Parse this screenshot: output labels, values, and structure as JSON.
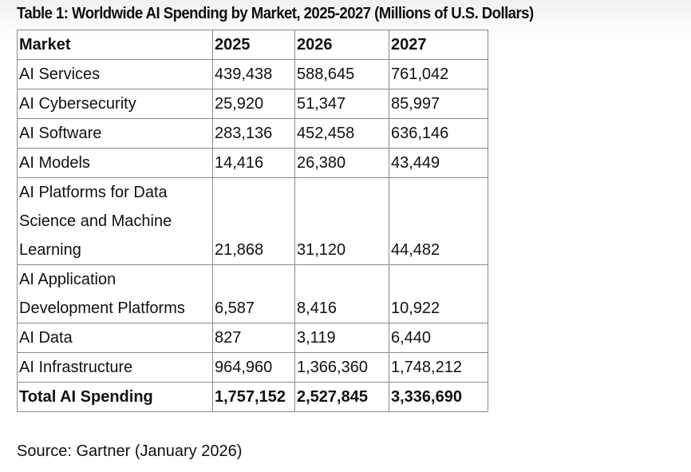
{
  "title": "Table 1: Worldwide AI Spending by Market, 2025-2027 (Millions of U.S. Dollars)",
  "table": {
    "headers": [
      "Market",
      "2025",
      "2026",
      "2027"
    ],
    "rows": [
      {
        "market": "AI Services",
        "y2025": "439,438",
        "y2026": "588,645",
        "y2027": "761,042"
      },
      {
        "market": "AI Cybersecurity",
        "y2025": "25,920",
        "y2026": "51,347",
        "y2027": "85,997"
      },
      {
        "market": "AI Software",
        "y2025": "283,136",
        "y2026": "452,458",
        "y2027": "636,146"
      },
      {
        "market": "AI Models",
        "y2025": "14,416",
        "y2026": "26,380",
        "y2027": "43,449"
      },
      {
        "market_lines": [
          "AI Platforms for Data",
          "Science and Machine",
          "Learning"
        ],
        "y2025": "21,868",
        "y2026": "31,120",
        "y2027": "44,482"
      },
      {
        "market_lines": [
          "AI Application",
          "Development Platforms"
        ],
        "y2025": "6,587",
        "y2026": "8,416",
        "y2027": "10,922"
      },
      {
        "market": "AI Data",
        "y2025": "827",
        "y2026": "3,119",
        "y2027": "6,440"
      },
      {
        "market": "AI Infrastructure",
        "y2025": "964,960",
        "y2026": "1,366,360",
        "y2027": "1,748,212"
      }
    ],
    "total": {
      "market": "Total AI Spending",
      "y2025": "1,757,152",
      "y2026": "2,527,845",
      "y2027": "3,336,690"
    }
  },
  "source": "Source: Gartner (January 2026)"
}
